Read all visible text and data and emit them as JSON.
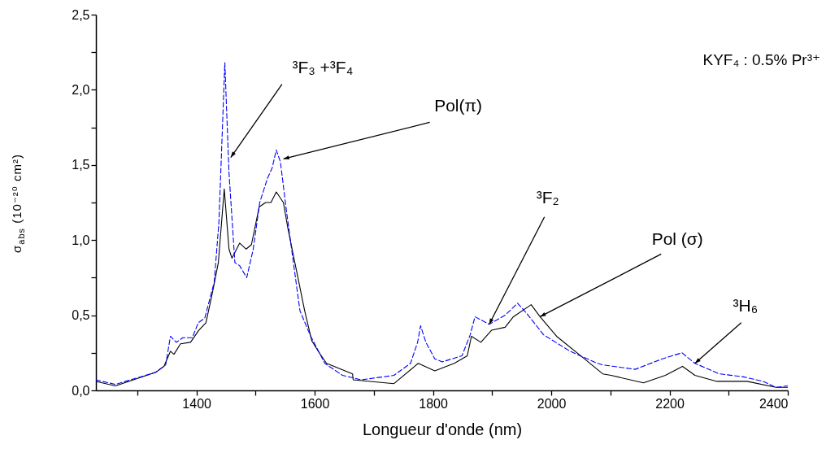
{
  "chart_data": {
    "type": "line",
    "xlabel": "Longueur d'onde (nm)",
    "ylabel": "σ$_{abs}$ (10⁻²⁰ cm²)",
    "xlim": [
      1230,
      2400
    ],
    "ylim": [
      0,
      2.5
    ],
    "xticks": [
      {
        "value": 1300,
        "label": null
      },
      1400,
      {
        "value": 1500,
        "label": null
      },
      1600,
      {
        "value": 1700,
        "label": null
      },
      1800,
      {
        "value": 1900,
        "label": null
      },
      2000,
      {
        "value": 2100,
        "label": null
      },
      2200,
      {
        "value": 2300,
        "label": null
      },
      2400
    ],
    "yticks": [
      {
        "value": 0,
        "label": "0,0"
      },
      {
        "value": 0.25,
        "label": null
      },
      {
        "value": 0.5,
        "label": "0,5"
      },
      {
        "value": 0.75,
        "label": null
      },
      {
        "value": 1,
        "label": "1,0"
      },
      {
        "value": 1.25,
        "label": null
      },
      {
        "value": 1.5,
        "label": "1,5"
      },
      {
        "value": 1.75,
        "label": null
      },
      {
        "value": 2,
        "label": "2,0"
      },
      {
        "value": 2.25,
        "label": null
      },
      {
        "value": 2.5,
        "label": "2,5"
      }
    ],
    "series": [
      {
        "color": "#000000",
        "line_style": "solid",
        "x": [
          1230,
          1263,
          1331,
          1345,
          1356,
          1362,
          1373,
          1390,
          1404,
          1416,
          1427,
          1437,
          1447,
          1455,
          1460,
          1473,
          1484,
          1493,
          1506,
          1517,
          1526,
          1535,
          1547,
          1555,
          1569,
          1583,
          1595,
          1606,
          1620,
          1664,
          1665,
          1734,
          1775,
          1803,
          1836,
          1858,
          1865,
          1881,
          1899,
          1922,
          1936,
          1966,
          1981,
          2009,
          2056,
          2087,
          2101,
          2156,
          2193,
          2222,
          2243,
          2280,
          2331,
          2380,
          2400
        ],
        "values": [
          0.06,
          0.03,
          0.12,
          0.16,
          0.26,
          0.24,
          0.31,
          0.32,
          0.4,
          0.45,
          0.65,
          0.85,
          1.34,
          0.94,
          0.88,
          0.98,
          0.94,
          0.97,
          1.22,
          1.25,
          1.25,
          1.32,
          1.25,
          1.07,
          0.8,
          0.53,
          0.33,
          0.26,
          0.18,
          0.11,
          0.07,
          0.045,
          0.18,
          0.13,
          0.18,
          0.23,
          0.36,
          0.32,
          0.4,
          0.42,
          0.49,
          0.57,
          0.49,
          0.36,
          0.21,
          0.11,
          0.1,
          0.05,
          0.1,
          0.16,
          0.1,
          0.06,
          0.06,
          0.02,
          0.02
        ]
      },
      {
        "color": "#0000ff",
        "line_style": "dashed",
        "x": [
          1230,
          1263,
          1331,
          1348,
          1356,
          1366,
          1377,
          1393,
          1403,
          1414,
          1430,
          1438,
          1448,
          1455,
          1465,
          1473,
          1485,
          1496,
          1507,
          1520,
          1528,
          1535,
          1542,
          1551,
          1565,
          1575,
          1592,
          1617,
          1647,
          1679,
          1734,
          1762,
          1774,
          1779,
          1788,
          1803,
          1816,
          1849,
          1863,
          1871,
          1895,
          1922,
          1943,
          1959,
          1987,
          2032,
          2078,
          2087,
          2142,
          2188,
          2221,
          2243,
          2284,
          2325,
          2358,
          2380,
          2400
        ],
        "values": [
          0.07,
          0.04,
          0.12,
          0.17,
          0.36,
          0.32,
          0.35,
          0.35,
          0.45,
          0.48,
          0.72,
          1.12,
          2.18,
          1.45,
          0.85,
          0.83,
          0.75,
          0.94,
          1.25,
          1.41,
          1.48,
          1.6,
          1.52,
          1.23,
          0.82,
          0.53,
          0.37,
          0.18,
          0.1,
          0.07,
          0.1,
          0.18,
          0.32,
          0.43,
          0.32,
          0.21,
          0.19,
          0.23,
          0.37,
          0.49,
          0.44,
          0.5,
          0.58,
          0.51,
          0.37,
          0.26,
          0.18,
          0.17,
          0.14,
          0.21,
          0.25,
          0.18,
          0.11,
          0.09,
          0.06,
          0.02,
          0.03
        ]
      }
    ],
    "annotations": [
      {
        "text": "³F₃ +³F₄",
        "x": 1458,
        "y": 1.55
      },
      {
        "text": "Pol(π)",
        "x": 1547,
        "y": 1.54
      },
      {
        "text": "³F₂",
        "x": 1895,
        "y": 0.44
      },
      {
        "text": "Pol (σ)",
        "x": 1981,
        "y": 0.49
      },
      {
        "text": "³H₆",
        "x": 2243,
        "y": 0.18
      },
      "KYF₄ : 0.5% Pr³⁺"
    ]
  }
}
